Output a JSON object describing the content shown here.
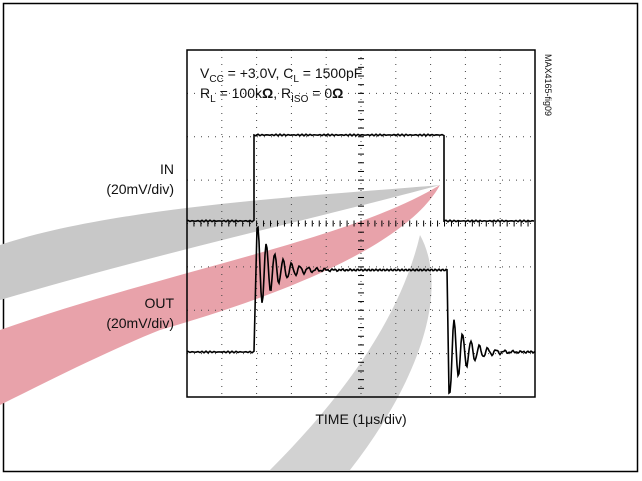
{
  "conditions": {
    "line1": [
      "V",
      "CC",
      " = +3.0V, C",
      "L",
      " = 1500pF"
    ],
    "line2": [
      "R",
      "L",
      " = 100k",
      "Ω",
      ", R",
      "ISO",
      " = 0",
      "Ω"
    ]
  },
  "figure_id": "MAX4165-fig09",
  "channels": [
    {
      "name": "IN",
      "scale": "(20mV/div)"
    },
    {
      "name": "OUT",
      "scale": "(20mV/div)"
    }
  ],
  "x_axis_label": "TIME (1μs/div)"
}
